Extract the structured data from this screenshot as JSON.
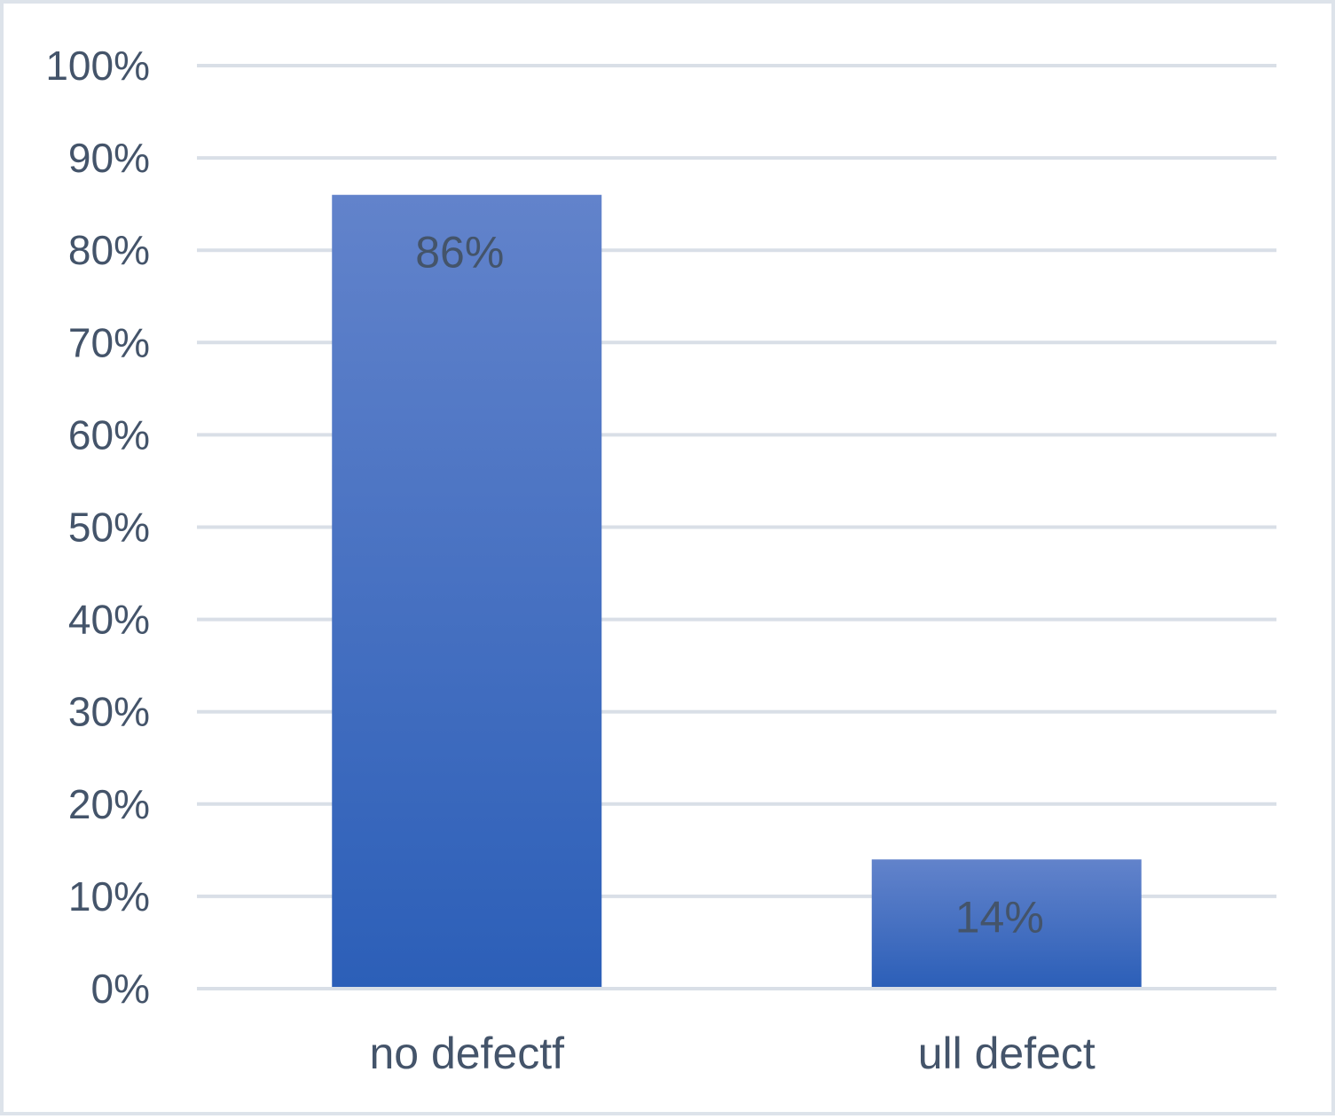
{
  "chart_data": {
    "type": "bar",
    "categories": [
      "no defectf",
      "ull defect"
    ],
    "values": [
      86,
      14
    ],
    "data_labels": [
      "86%",
      "14%"
    ],
    "y_ticks": [
      "0%",
      "10%",
      "20%",
      "30%",
      "40%",
      "50%",
      "60%",
      "70%",
      "80%",
      "90%",
      "100%"
    ],
    "ylim": [
      0,
      100
    ],
    "title": "",
    "xlabel": "",
    "ylabel": "",
    "grid": true,
    "legend": "none",
    "bar_color_top": "#6283cb",
    "bar_color_bottom": "#2c5fb8"
  }
}
